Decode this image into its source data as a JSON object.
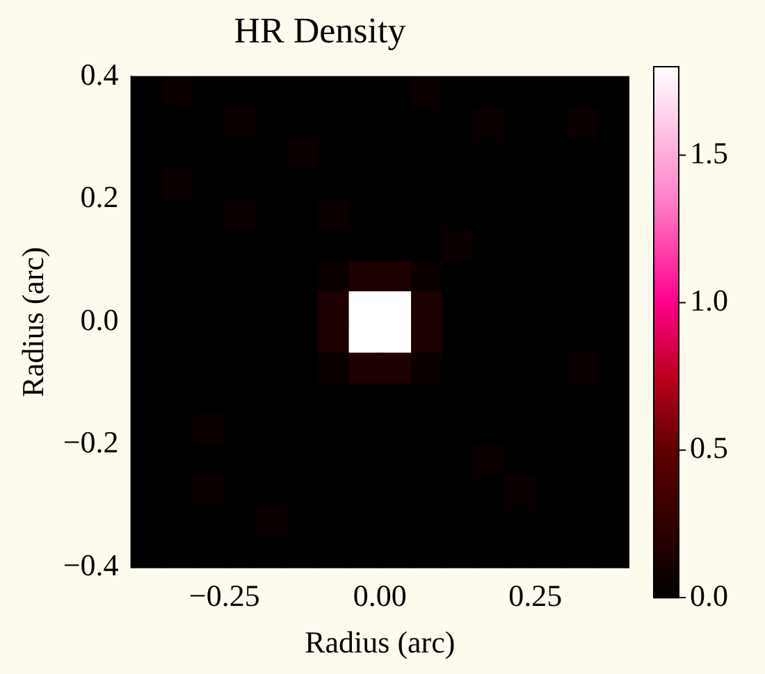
{
  "chart_data": {
    "type": "heatmap",
    "title": "HR Density",
    "xlabel": "Radius (arc)",
    "ylabel": "Radius (arc)",
    "x": [
      -0.375,
      -0.325,
      -0.275,
      -0.225,
      -0.175,
      -0.125,
      -0.075,
      -0.025,
      0.025,
      0.075,
      0.125,
      0.175,
      0.225,
      0.275,
      0.325,
      0.375
    ],
    "xlim": [
      -0.4,
      0.4
    ],
    "ylim": [
      -0.4,
      0.4
    ],
    "xticks": [
      {
        "value": -0.25,
        "label": "−0.25"
      },
      {
        "value": 0,
        "label": "0.00"
      },
      {
        "value": 0.25,
        "label": "0.25"
      }
    ],
    "yticks": [
      {
        "value": -0.4,
        "label": "−0.4"
      },
      {
        "value": -0.2,
        "label": "−0.2"
      },
      {
        "value": 0,
        "label": "0.0"
      },
      {
        "value": 0.2,
        "label": "0.2"
      },
      {
        "value": 0.4,
        "label": "0.4"
      }
    ],
    "clim": [
      0,
      1.8
    ],
    "cticks": [
      {
        "value": 0,
        "label": "0.0"
      },
      {
        "value": 0.5,
        "label": "0.5"
      },
      {
        "value": 1,
        "label": "1.0"
      },
      {
        "value": 1.5,
        "label": "1.5"
      }
    ],
    "cells": [
      [
        0,
        0.05,
        0,
        0,
        0,
        0,
        0,
        0,
        0,
        0.05,
        0,
        0,
        0,
        0,
        0,
        0
      ],
      [
        0,
        0,
        0,
        0.05,
        0,
        0,
        0,
        0,
        0,
        0,
        0,
        0.05,
        0,
        0,
        0.05,
        0
      ],
      [
        0,
        0,
        0,
        0,
        0,
        0.05,
        0,
        0,
        0,
        0,
        0,
        0,
        0,
        0,
        0,
        0
      ],
      [
        0,
        0.05,
        0,
        0,
        0,
        0,
        0,
        0,
        0,
        0,
        0,
        0,
        0,
        0,
        0,
        0
      ],
      [
        0,
        0,
        0,
        0.05,
        0,
        0,
        0.05,
        0,
        0,
        0,
        0,
        0,
        0,
        0,
        0,
        0
      ],
      [
        0,
        0,
        0,
        0,
        0,
        0,
        0,
        0,
        0,
        0,
        0.05,
        0,
        0,
        0,
        0,
        0
      ],
      [
        0,
        0,
        0,
        0,
        0,
        0,
        0.05,
        0.15,
        0.15,
        0.05,
        0,
        0,
        0,
        0,
        0,
        0
      ],
      [
        0,
        0,
        0,
        0,
        0,
        0,
        0.15,
        1.8,
        1.8,
        0.15,
        0,
        0,
        0,
        0,
        0,
        0
      ],
      [
        0,
        0,
        0,
        0,
        0,
        0,
        0.15,
        1.8,
        1.8,
        0.15,
        0,
        0,
        0,
        0,
        0,
        0
      ],
      [
        0,
        0,
        0,
        0,
        0,
        0,
        0.05,
        0.15,
        0.15,
        0.05,
        0,
        0,
        0,
        0,
        0.05,
        0
      ],
      [
        0,
        0,
        0,
        0,
        0,
        0,
        0,
        0,
        0,
        0,
        0,
        0,
        0,
        0,
        0,
        0
      ],
      [
        0,
        0,
        0.05,
        0,
        0,
        0,
        0,
        0,
        0,
        0,
        0,
        0,
        0,
        0,
        0,
        0
      ],
      [
        0,
        0,
        0,
        0,
        0,
        0,
        0,
        0,
        0,
        0,
        0,
        0.05,
        0,
        0,
        0,
        0
      ],
      [
        0,
        0,
        0.05,
        0,
        0,
        0,
        0,
        0,
        0,
        0,
        0,
        0,
        0.05,
        0,
        0,
        0
      ],
      [
        0,
        0,
        0,
        0,
        0.05,
        0,
        0,
        0,
        0,
        0,
        0,
        0,
        0,
        0,
        0,
        0
      ],
      [
        0,
        0,
        0,
        0,
        0,
        0,
        0,
        0,
        0,
        0,
        0,
        0,
        0,
        0,
        0,
        0
      ]
    ]
  }
}
